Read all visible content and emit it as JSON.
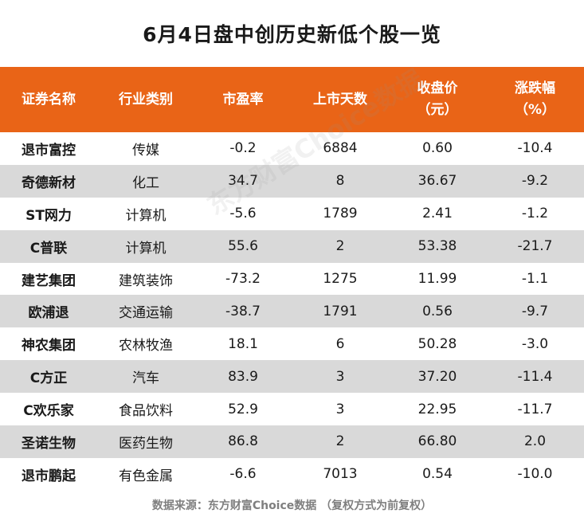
{
  "title": "6月4日盘中创历史新低个股一览",
  "headers": {
    "name": "证券名称",
    "industry": "行业类别",
    "pe": "市盈率",
    "days": "上市天数",
    "close_line1": "收盘价",
    "close_line2": "（元）",
    "change_line1": "涨跌幅",
    "change_line2": "（%）"
  },
  "rows": [
    {
      "name": "退市富控",
      "industry": "传媒",
      "pe": "-0.2",
      "days": "6884",
      "close": "0.60",
      "change": "-10.4"
    },
    {
      "name": "奇德新材",
      "industry": "化工",
      "pe": "34.7",
      "days": "8",
      "close": "36.67",
      "change": "-9.2"
    },
    {
      "name": "ST网力",
      "industry": "计算机",
      "pe": "-5.6",
      "days": "1789",
      "close": "2.41",
      "change": "-1.2"
    },
    {
      "name": "C普联",
      "industry": "计算机",
      "pe": "55.6",
      "days": "2",
      "close": "53.38",
      "change": "-21.7"
    },
    {
      "name": "建艺集团",
      "industry": "建筑装饰",
      "pe": "-73.2",
      "days": "1275",
      "close": "11.99",
      "change": "-1.1"
    },
    {
      "name": "欧浦退",
      "industry": "交通运输",
      "pe": "-38.7",
      "days": "1791",
      "close": "0.56",
      "change": "-9.7"
    },
    {
      "name": "神农集团",
      "industry": "农林牧渔",
      "pe": "18.1",
      "days": "6",
      "close": "50.28",
      "change": "-3.0"
    },
    {
      "name": "C方正",
      "industry": "汽车",
      "pe": "83.9",
      "days": "3",
      "close": "37.20",
      "change": "-11.4"
    },
    {
      "name": "C欢乐家",
      "industry": "食品饮料",
      "pe": "52.9",
      "days": "3",
      "close": "22.95",
      "change": "-11.7"
    },
    {
      "name": "圣诺生物",
      "industry": "医药生物",
      "pe": "86.8",
      "days": "2",
      "close": "66.80",
      "change": "2.0"
    },
    {
      "name": "退市鹏起",
      "industry": "有色金属",
      "pe": "-6.6",
      "days": "7013",
      "close": "0.54",
      "change": "-10.0"
    }
  ],
  "source": "数据来源：东方财富Choice数据 （复权方式为前复权）",
  "watermark": "东方财富Choice数据",
  "colors": {
    "header_bg": "#e96417",
    "alt_row_bg": "#d9d9d9"
  }
}
